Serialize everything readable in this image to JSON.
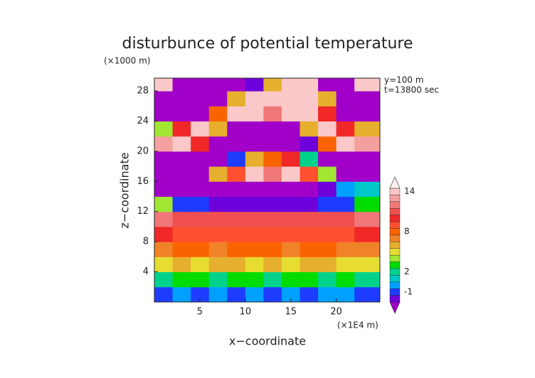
{
  "chart_data": {
    "type": "heatmap",
    "title": "disturbunce of potential temperature",
    "y_unit_label": "(×1000 m)",
    "x_unit_label": "(×1E4 m)",
    "annotations": [
      "y=100 m",
      "t=13800 sec"
    ],
    "xlabel": "x−coordinate",
    "ylabel": "z−coordinate",
    "xlim": [
      0,
      24.8
    ],
    "ylim": [
      0,
      29.7
    ],
    "xticks": [
      5,
      10,
      15,
      20
    ],
    "yticks": [
      4,
      8,
      12,
      16,
      20,
      24,
      28
    ],
    "x": [
      1,
      3,
      5,
      7,
      9,
      11,
      13,
      15,
      17,
      19,
      21,
      23
    ],
    "y": [
      1,
      3,
      5,
      7,
      9,
      11,
      13,
      15,
      17,
      19,
      21,
      23,
      25,
      27,
      29
    ],
    "values": [
      [
        -1,
        0,
        -1,
        0,
        -1,
        0,
        -1,
        0,
        -1,
        0,
        0,
        -1
      ],
      [
        2,
        3,
        3,
        2,
        3,
        3,
        2,
        3,
        3,
        2,
        3,
        2
      ],
      [
        5,
        6,
        5,
        6,
        6,
        5,
        6,
        5,
        6,
        6,
        5,
        5
      ],
      [
        7,
        8,
        8,
        7,
        8,
        8,
        8,
        7,
        8,
        8,
        7,
        7
      ],
      [
        10,
        9,
        9,
        9,
        9,
        9,
        9,
        9,
        9,
        9,
        9,
        10
      ],
      [
        12,
        11,
        11,
        11,
        11,
        11,
        11,
        11,
        11,
        11,
        11,
        12
      ],
      [
        4,
        -1,
        -1,
        -2,
        -2,
        -2,
        -2,
        -2,
        -2,
        -1,
        -1,
        3
      ],
      [
        -3,
        -3,
        -3,
        -3,
        -3,
        -3,
        -3,
        -3,
        -3,
        -2,
        0,
        1
      ],
      [
        -3,
        -3,
        -3,
        6,
        9,
        14,
        12,
        14,
        9,
        4,
        -3,
        -3
      ],
      [
        -3,
        -3,
        -3,
        -3,
        -1,
        6,
        8,
        10,
        2,
        -3,
        -3,
        -3
      ],
      [
        13,
        14,
        10,
        -3,
        -3,
        -3,
        -3,
        -3,
        -2,
        8,
        14,
        13
      ],
      [
        4,
        10,
        14,
        6,
        -3,
        -3,
        -3,
        -3,
        6,
        14,
        10,
        6
      ],
      [
        -3,
        -3,
        -3,
        8,
        14,
        14,
        12,
        14,
        14,
        10,
        -3,
        -3
      ],
      [
        -3,
        -3,
        -3,
        -3,
        6,
        14,
        14,
        14,
        14,
        6,
        -3,
        -3
      ],
      [
        14,
        -3,
        -3,
        -3,
        -3,
        -2,
        6,
        14,
        14,
        -3,
        -3,
        14
      ]
    ],
    "colorbar": {
      "levels": [
        -2,
        -1,
        0,
        1,
        2,
        3,
        4,
        5,
        6,
        7,
        8,
        9,
        10,
        11,
        12,
        13,
        14,
        15
      ],
      "colors": [
        "#a000c8",
        "#6e00dc",
        "#1e3cff",
        "#00a0ff",
        "#00c8c8",
        "#00d28c",
        "#00dc00",
        "#a0e632",
        "#e6dc32",
        "#e6af2d",
        "#f08228",
        "#fa6400",
        "#ff5030",
        "#f02828",
        "#f05050",
        "#f07878",
        "#f5a0a0",
        "#fac8c8",
        "#fff0f0"
      ],
      "ticks": [
        -1,
        2,
        8,
        14
      ]
    }
  }
}
